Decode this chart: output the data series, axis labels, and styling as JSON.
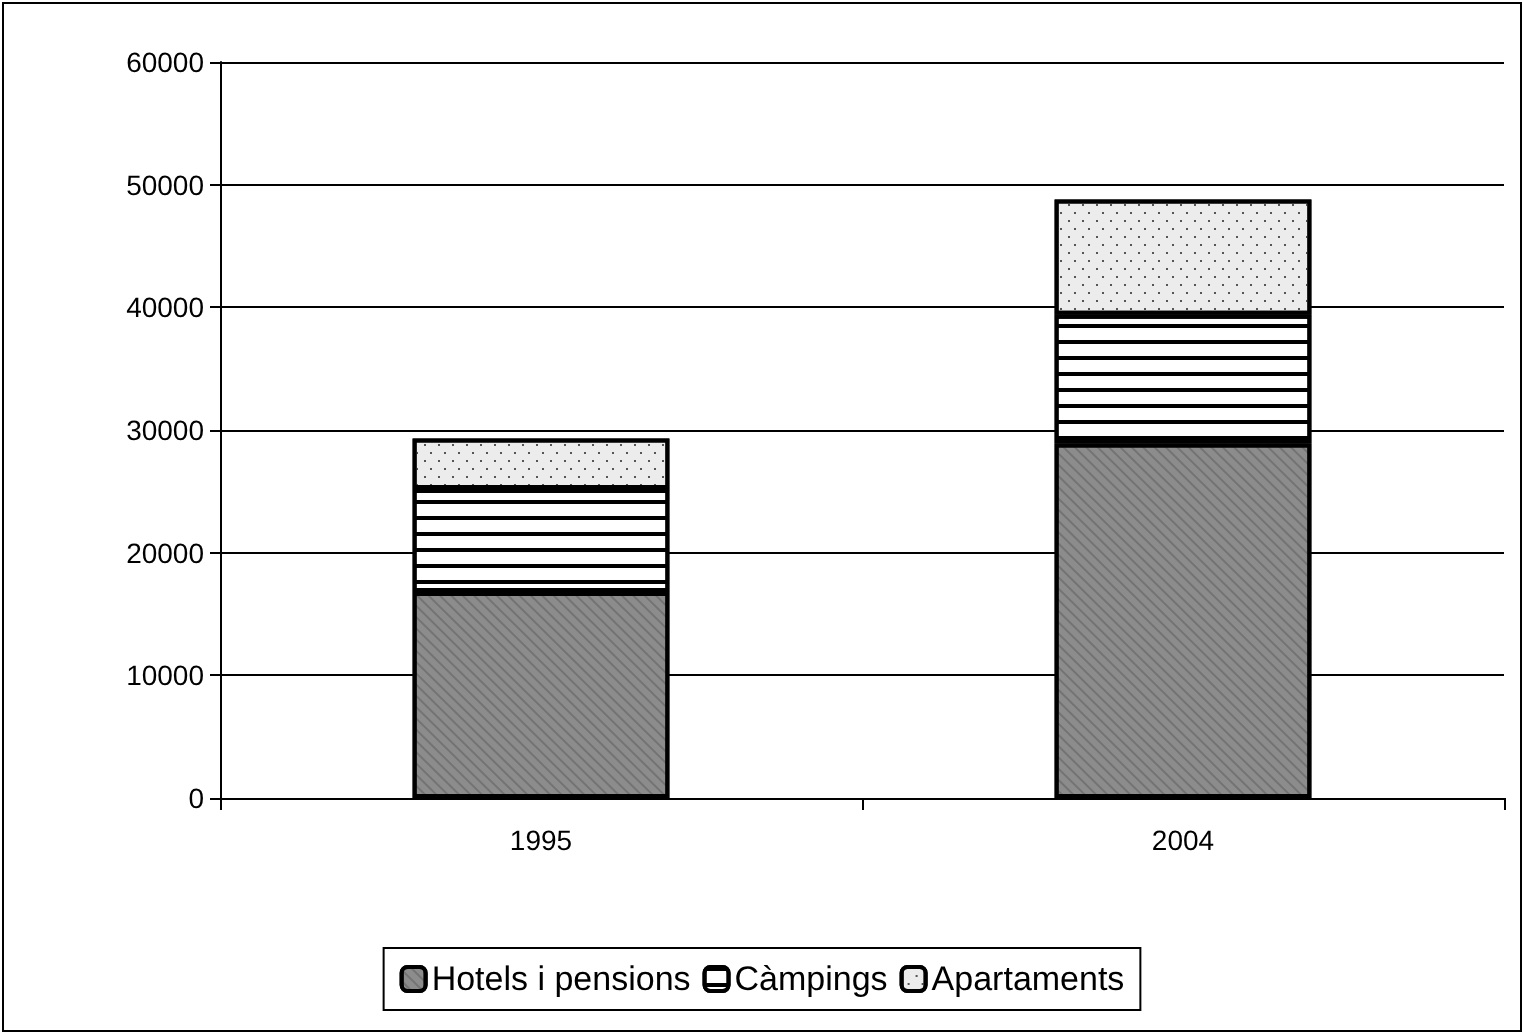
{
  "chart_data": {
    "type": "bar",
    "stacked": true,
    "categories": [
      "1995",
      "2004"
    ],
    "series": [
      {
        "name": "Hotels i pensions",
        "color": "#8c8c8c",
        "values": [
          16800,
          28900
        ]
      },
      {
        "name": "Càmpings",
        "color": "#ffffff",
        "values": [
          8400,
          10500
        ]
      },
      {
        "name": "Apartaments",
        "color": "#ececec",
        "values": [
          4100,
          9400
        ]
      }
    ],
    "ylim": [
      0,
      60000
    ],
    "yticks": [
      0,
      10000,
      20000,
      30000,
      40000,
      50000,
      60000
    ],
    "grid": "y",
    "legend": "bottom"
  }
}
